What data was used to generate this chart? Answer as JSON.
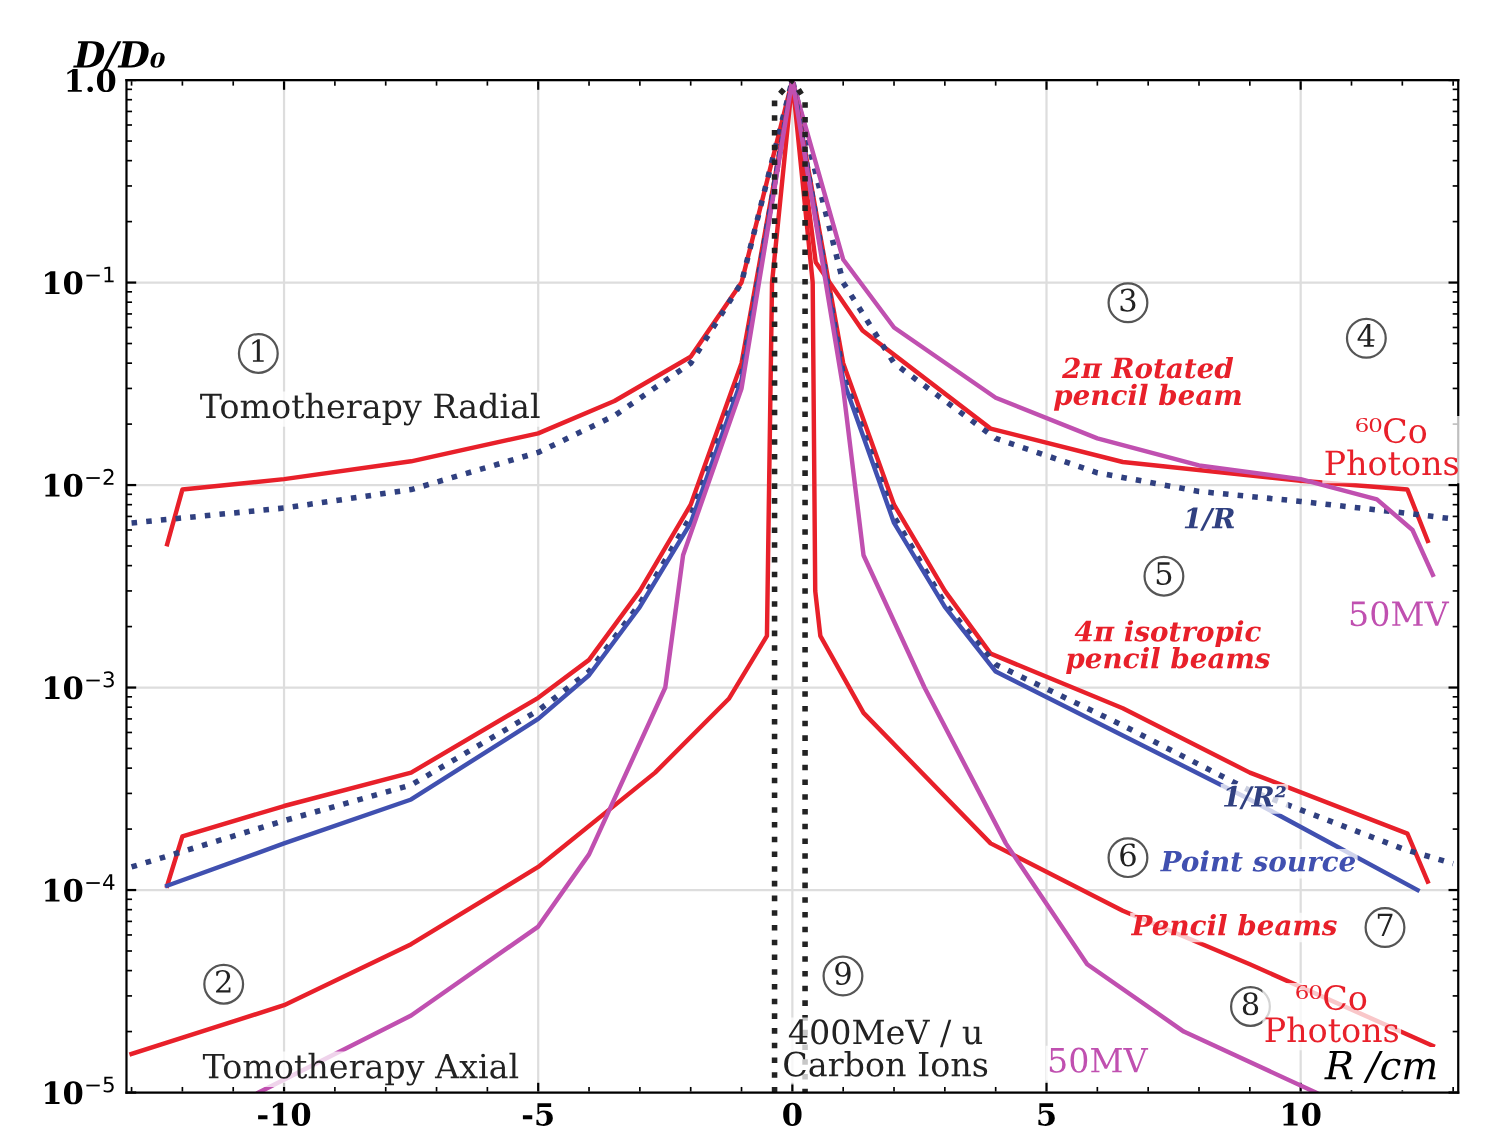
{
  "chart_data": {
    "type": "line",
    "xlabel": "R /cm",
    "ylabel": "D/D₀",
    "log": "y",
    "xlim": [
      -13.1,
      13.1
    ],
    "ylim": [
      1e-05,
      1.0
    ],
    "xticks": [
      -10,
      -5,
      0,
      5,
      10
    ],
    "yticks": [
      {
        "value": 1e-05,
        "label": "10$^{−5}$"
      },
      {
        "value": 0.0001,
        "label": "10$^{−4}$"
      },
      {
        "value": 0.001,
        "label": "10$^{−3}$"
      },
      {
        "value": 0.01,
        "label": "10$^{−2}$"
      },
      {
        "value": 0.1,
        "label": "10$^{−1}$"
      },
      {
        "value": 1.0,
        "label": "1.0"
      }
    ],
    "grid": true,
    "marker": "none",
    "legend": false,
    "series": [
      {
        "color": "#e8202a",
        "x": [
          -12.3,
          -12.0,
          -10,
          -7.5,
          -5,
          -3.5,
          -2,
          -1,
          0,
          0.46,
          1.38,
          3.9,
          6.5,
          10,
          12.1,
          12.5
        ],
        "values": [
          0.0051,
          0.0095,
          0.0107,
          0.0131,
          0.018,
          0.026,
          0.043,
          0.1,
          1.0,
          0.126,
          0.058,
          0.019,
          0.013,
          0.0105,
          0.0095,
          0.0053
        ]
      },
      {
        "color": "#304080",
        "line_style": "dotted",
        "x": [
          -13,
          -10,
          -7.5,
          -5,
          -3.5,
          -2,
          -1,
          0,
          1,
          2,
          4,
          6,
          8,
          10,
          12,
          13
        ],
        "values": [
          0.0065,
          0.0077,
          0.0095,
          0.0145,
          0.022,
          0.04,
          0.1,
          1.0,
          0.1,
          0.04,
          0.017,
          0.0115,
          0.0093,
          0.0083,
          0.0073,
          0.0068
        ]
      },
      {
        "color": "#c050b0",
        "x": [
          0,
          1,
          2,
          4,
          6,
          8,
          10,
          11.5,
          12.2,
          12.6
        ],
        "values": [
          1.0,
          0.13,
          0.06,
          0.027,
          0.017,
          0.0125,
          0.0107,
          0.0085,
          0.006,
          0.0036
        ]
      },
      {
        "color": "#e8202a",
        "x": [
          -12.3,
          -12.0,
          -10,
          -7.5,
          -5,
          -4,
          -3,
          -2,
          -1,
          0,
          1,
          2,
          3,
          3.9,
          6.5,
          9,
          12.1,
          12.5
        ],
        "values": [
          0.000105,
          0.000184,
          0.00026,
          0.00038,
          0.00089,
          0.00137,
          0.003,
          0.008,
          0.04,
          1.0,
          0.04,
          0.008,
          0.003,
          0.00147,
          0.00079,
          0.00038,
          0.00019,
          0.00011
        ]
      },
      {
        "color": "#304080",
        "line_style": "dotted",
        "x": [
          -13,
          -10,
          -7.5,
          -5,
          -4,
          -3,
          -2,
          -1,
          0,
          1,
          2,
          3,
          4,
          6.5,
          9,
          12,
          13
        ],
        "values": [
          0.00013,
          0.00022,
          0.00033,
          0.00077,
          0.0012,
          0.0026,
          0.007,
          0.035,
          1.0,
          0.035,
          0.007,
          0.0026,
          0.0013,
          0.00065,
          0.00031,
          0.00016,
          0.000135
        ]
      },
      {
        "color": "#4050b0",
        "x": [
          -12.3,
          -10,
          -7.5,
          -5,
          -4,
          -3,
          -2,
          -1,
          0,
          1,
          2,
          3,
          4,
          6.5,
          9,
          12.3
        ],
        "values": [
          0.000105,
          0.00017,
          0.00028,
          0.0007,
          0.00115,
          0.0025,
          0.0065,
          0.033,
          1.0,
          0.033,
          0.0065,
          0.0025,
          0.0012,
          0.00058,
          0.00028,
          0.0001
        ]
      },
      {
        "color": "#e8202a",
        "x": [
          -13,
          -10,
          -7.5,
          -5,
          -2.7,
          -1.25,
          -0.5,
          -0.4,
          0,
          0.4,
          0.45,
          0.55,
          1.4,
          3.9,
          6.5,
          9,
          12.6
        ],
        "values": [
          1.55e-05,
          2.7e-05,
          5.4e-05,
          0.00013,
          0.00038,
          0.00088,
          0.0018,
          0.1,
          1.0,
          0.1,
          0.003,
          0.0018,
          0.00075,
          0.00017,
          7.9e-05,
          4.3e-05,
          1.7e-05
        ]
      },
      {
        "color": "#c050b0",
        "x": [
          -10.5,
          -7.5,
          -5,
          -4,
          -2.5,
          -2.15,
          -1,
          0,
          1,
          1.4,
          2.6,
          4.2,
          5.8,
          7.7,
          10.3
        ],
        "values": [
          1e-05,
          2.4e-05,
          6.6e-05,
          0.00015,
          0.001,
          0.0045,
          0.03,
          1.0,
          0.03,
          0.0045,
          0.001,
          0.00017,
          4.3e-05,
          2e-05,
          1e-05
        ]
      },
      {
        "color": "#222222",
        "line_style": "dotted",
        "x": [
          -0.35,
          -0.35,
          0,
          0.25,
          0.25
        ],
        "values": [
          1e-05,
          0.8,
          1.0,
          0.8,
          1e-05
        ]
      }
    ],
    "annotations": [
      "1",
      "Tomotherapy Radial",
      "3",
      "2π Rotated\npencil beam",
      "4",
      "⁶⁰Co\nPhotons",
      "1/R",
      "50MV",
      "5",
      "4π isotropic\npencil beams",
      "1/R²",
      "6",
      "Point source",
      "Pencil beams",
      "7",
      "8",
      "⁶⁰Co\nPhotons",
      "50MV",
      "9",
      "400MeV / u\nCarbon Ions",
      "2",
      "Tomotherapy Axial"
    ]
  }
}
